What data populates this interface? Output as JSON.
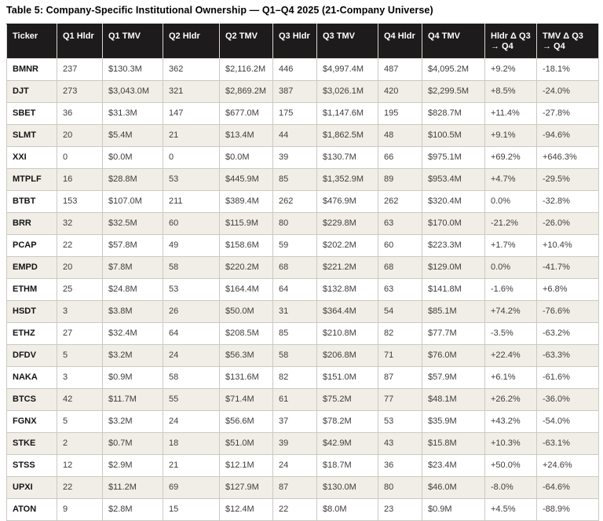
{
  "title": "Table 5: Company-Specific Institutional Ownership — Q1–Q4 2025 (21-Company Universe)",
  "table": {
    "columns": [
      "Ticker",
      "Q1 Hldr",
      "Q1 TMV",
      "Q2 Hldr",
      "Q2 TMV",
      "Q3 Hldr",
      "Q3 TMV",
      "Q4 Hldr",
      "Q4 TMV",
      "Hldr Δ Q3 → Q4",
      "TMV Δ Q3 → Q4"
    ],
    "rows": [
      [
        "BMNR",
        "237",
        "$130.3M",
        "362",
        "$2,116.2M",
        "446",
        "$4,997.4M",
        "487",
        "$4,095.2M",
        "+9.2%",
        "-18.1%"
      ],
      [
        "DJT",
        "273",
        "$3,043.0M",
        "321",
        "$2,869.2M",
        "387",
        "$3,026.1M",
        "420",
        "$2,299.5M",
        "+8.5%",
        "-24.0%"
      ],
      [
        "SBET",
        "36",
        "$31.3M",
        "147",
        "$677.0M",
        "175",
        "$1,147.6M",
        "195",
        "$828.7M",
        "+11.4%",
        "-27.8%"
      ],
      [
        "SLMT",
        "20",
        "$5.4M",
        "21",
        "$13.4M",
        "44",
        "$1,862.5M",
        "48",
        "$100.5M",
        "+9.1%",
        "-94.6%"
      ],
      [
        "XXI",
        "0",
        "$0.0M",
        "0",
        "$0.0M",
        "39",
        "$130.7M",
        "66",
        "$975.1M",
        "+69.2%",
        "+646.3%"
      ],
      [
        "MTPLF",
        "16",
        "$28.8M",
        "53",
        "$445.9M",
        "85",
        "$1,352.9M",
        "89",
        "$953.4M",
        "+4.7%",
        "-29.5%"
      ],
      [
        "BTBT",
        "153",
        "$107.0M",
        "211",
        "$389.4M",
        "262",
        "$476.9M",
        "262",
        "$320.4M",
        "0.0%",
        "-32.8%"
      ],
      [
        "BRR",
        "32",
        "$32.5M",
        "60",
        "$115.9M",
        "80",
        "$229.8M",
        "63",
        "$170.0M",
        "-21.2%",
        "-26.0%"
      ],
      [
        "PCAP",
        "22",
        "$57.8M",
        "49",
        "$158.6M",
        "59",
        "$202.2M",
        "60",
        "$223.3M",
        "+1.7%",
        "+10.4%"
      ],
      [
        "EMPD",
        "20",
        "$7.8M",
        "58",
        "$220.2M",
        "68",
        "$221.2M",
        "68",
        "$129.0M",
        "0.0%",
        "-41.7%"
      ],
      [
        "ETHM",
        "25",
        "$24.8M",
        "53",
        "$164.4M",
        "64",
        "$132.8M",
        "63",
        "$141.8M",
        "-1.6%",
        "+6.8%"
      ],
      [
        "HSDT",
        "3",
        "$3.8M",
        "26",
        "$50.0M",
        "31",
        "$364.4M",
        "54",
        "$85.1M",
        "+74.2%",
        "-76.6%"
      ],
      [
        "ETHZ",
        "27",
        "$32.4M",
        "64",
        "$208.5M",
        "85",
        "$210.8M",
        "82",
        "$77.7M",
        "-3.5%",
        "-63.2%"
      ],
      [
        "DFDV",
        "5",
        "$3.2M",
        "24",
        "$56.3M",
        "58",
        "$206.8M",
        "71",
        "$76.0M",
        "+22.4%",
        "-63.3%"
      ],
      [
        "NAKA",
        "3",
        "$0.9M",
        "58",
        "$131.6M",
        "82",
        "$151.0M",
        "87",
        "$57.9M",
        "+6.1%",
        "-61.6%"
      ],
      [
        "BTCS",
        "42",
        "$11.7M",
        "55",
        "$71.4M",
        "61",
        "$75.2M",
        "77",
        "$48.1M",
        "+26.2%",
        "-36.0%"
      ],
      [
        "FGNX",
        "5",
        "$3.2M",
        "24",
        "$56.6M",
        "37",
        "$78.2M",
        "53",
        "$35.9M",
        "+43.2%",
        "-54.0%"
      ],
      [
        "STKE",
        "2",
        "$0.7M",
        "18",
        "$51.0M",
        "39",
        "$42.9M",
        "43",
        "$15.8M",
        "+10.3%",
        "-63.1%"
      ],
      [
        "STSS",
        "12",
        "$2.9M",
        "21",
        "$12.1M",
        "24",
        "$18.7M",
        "36",
        "$23.4M",
        "+50.0%",
        "+24.6%"
      ],
      [
        "UPXI",
        "22",
        "$11.2M",
        "69",
        "$127.9M",
        "87",
        "$130.0M",
        "80",
        "$46.0M",
        "-8.0%",
        "-64.6%"
      ],
      [
        "ATON",
        "9",
        "$2.8M",
        "15",
        "$12.4M",
        "22",
        "$8.0M",
        "23",
        "$0.9M",
        "+4.5%",
        "-88.9%"
      ]
    ]
  },
  "colors": {
    "header_bg": "#1d1b1b",
    "header_text": "#ffffff",
    "row_bg": "#ffffff",
    "row_alt_bg": "#f1eee7",
    "border": "#ccc9c2",
    "outer_border": "#a6a29b",
    "text": "#403e3c",
    "title_text": "#000000"
  }
}
